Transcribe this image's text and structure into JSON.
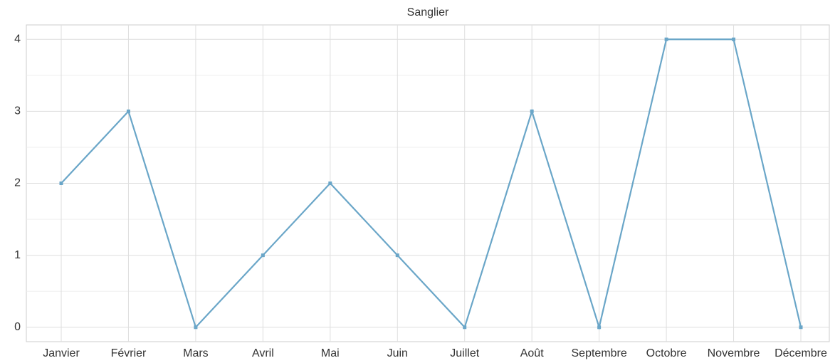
{
  "chart_data": {
    "type": "line",
    "title": "Sanglier",
    "categories": [
      "Janvier",
      "Février",
      "Mars",
      "Avril",
      "Mai",
      "Juin",
      "Juillet",
      "Août",
      "Septembre",
      "Octobre",
      "Novembre",
      "Décembre"
    ],
    "series": [
      {
        "color": "#6aa6c8",
        "values": [
          2,
          3,
          0,
          1,
          2,
          1,
          0,
          3,
          0,
          4,
          4,
          0
        ]
      }
    ],
    "ylim": [
      -0.2,
      4.2
    ],
    "yticks": [
      0,
      1,
      2,
      3,
      4
    ],
    "grid": true
  }
}
